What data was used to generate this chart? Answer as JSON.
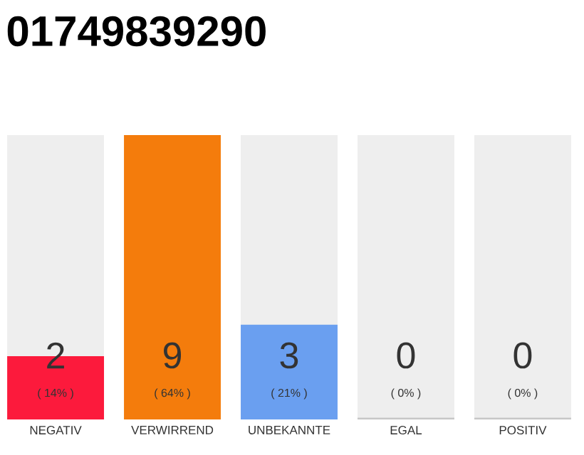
{
  "chart_data": {
    "type": "bar",
    "title": "01749839290",
    "categories": [
      "NEGATIV",
      "VERWIRREND",
      "UNBEKANNTE",
      "EGAL",
      "POSITIV"
    ],
    "values": [
      2,
      9,
      3,
      0,
      0
    ],
    "colors": [
      "#fc1a3c",
      "#f47c0c",
      "#6a9ff0",
      "#d0d0d0",
      "#d0d0d0"
    ],
    "ylim": [
      0,
      9
    ],
    "data_labels": true,
    "tick_labels": "x",
    "annotations": [
      "( 14% )",
      "( 64% )",
      "( 21% )",
      "( 0% )",
      "( 0% )"
    ]
  }
}
